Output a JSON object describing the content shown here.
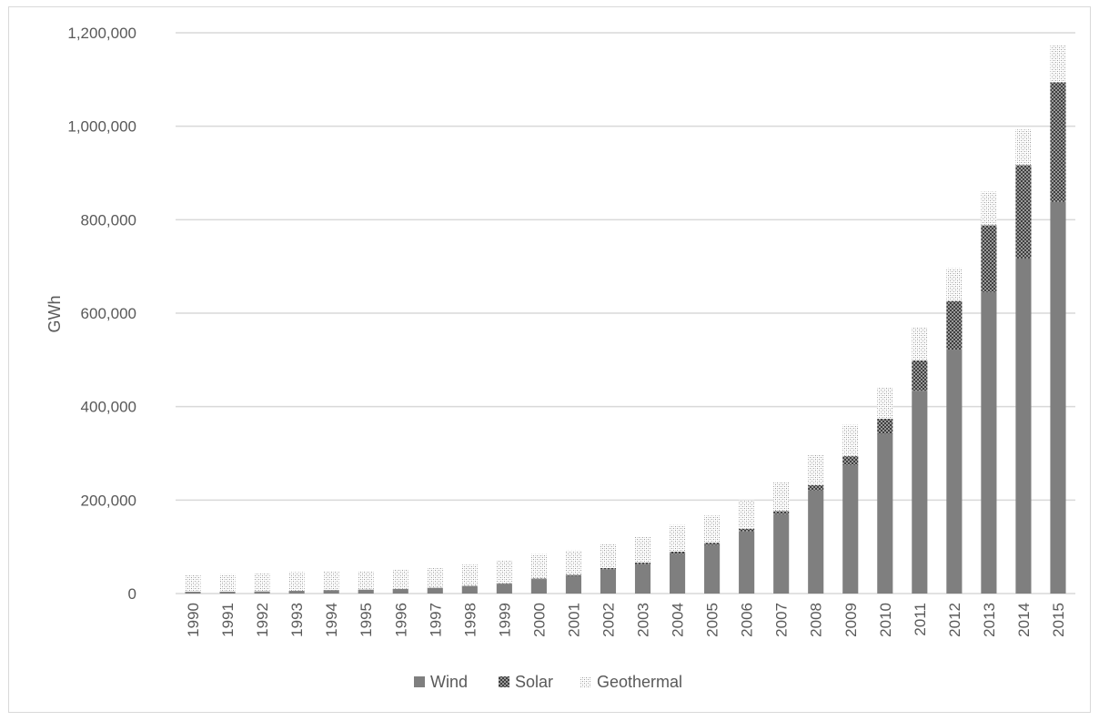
{
  "chart_data": {
    "type": "bar",
    "stacked": true,
    "categories": [
      "1990",
      "1991",
      "1992",
      "1993",
      "1994",
      "1995",
      "1996",
      "1997",
      "1998",
      "1999",
      "2000",
      "2001",
      "2002",
      "2003",
      "2004",
      "2005",
      "2006",
      "2007",
      "2008",
      "2009",
      "2010",
      "2011",
      "2012",
      "2013",
      "2014",
      "2015"
    ],
    "series": [
      {
        "name": "Wind",
        "values": [
          3900,
          4100,
          4600,
          5700,
          7300,
          8200,
          9700,
          12000,
          16000,
          21000,
          31000,
          38000,
          52000,
          63000,
          85000,
          104000,
          133000,
          170000,
          221000,
          275000,
          342000,
          434000,
          522000,
          645000,
          717000,
          838000
        ]
      },
      {
        "name": "Solar",
        "values": [
          100,
          100,
          100,
          200,
          300,
          400,
          400,
          500,
          700,
          900,
          1300,
          1900,
          2600,
          3400,
          4600,
          4800,
          5700,
          6500,
          11000,
          19000,
          32000,
          65000,
          104000,
          143000,
          200000,
          256000
        ]
      },
      {
        "name": "Geothermal",
        "values": [
          36000,
          37000,
          38000,
          40000,
          40000,
          40000,
          42000,
          42000,
          45000,
          50000,
          52000,
          52000,
          51000,
          56000,
          57000,
          58000,
          61000,
          62000,
          65000,
          67000,
          67000,
          70000,
          70000,
          72000,
          76000,
          80000
        ]
      }
    ],
    "xlabel": "",
    "ylabel": "GWh",
    "ylim": [
      0,
      1200000
    ],
    "yticks": [
      0,
      200000,
      400000,
      600000,
      800000,
      1000000,
      1200000
    ],
    "ytick_labels": [
      "0",
      "200,000",
      "400,000",
      "600,000",
      "800,000",
      "1,000,000",
      "1,200,000"
    ],
    "grid": "horizontal",
    "legend": "bottom-center",
    "colors": {
      "Wind": "#7f7f7f",
      "Solar": "#595959",
      "Geothermal": "#c8c8c8",
      "grid": "#d9d9d9",
      "text": "#595959"
    }
  }
}
